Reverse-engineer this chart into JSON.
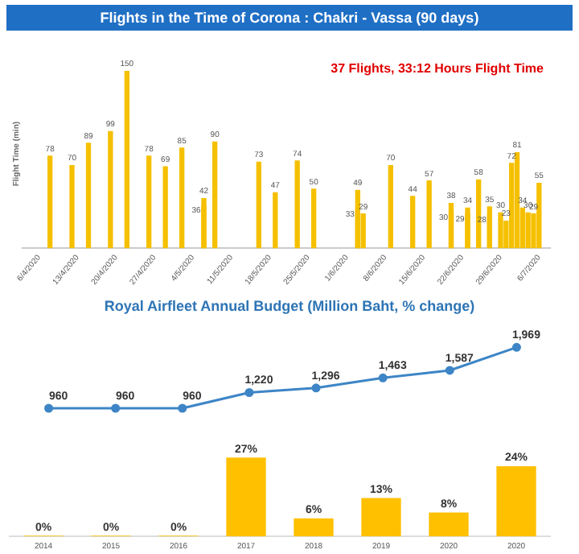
{
  "chart_data": [
    {
      "type": "bar",
      "title": "Flights in the Time of Corona : Chakri - Vassa (90 days)",
      "ylabel": "Flight Time (min)",
      "annotations": [
        "37 Flights, 33:12 Hours Flight Time"
      ],
      "color": "#f5c000",
      "series": [
        {
          "x": [
            "2020-04-08",
            "2020-04-12",
            "2020-04-15",
            "2020-04-19",
            "2020-04-22",
            "2020-04-26",
            "2020-04-29",
            "2020-05-02",
            "2020-05-06",
            "2020-05-08",
            "2020-05-16",
            "2020-05-19",
            "2020-05-23",
            "2020-05-26",
            "2020-06-03",
            "2020-06-04",
            "2020-06-09",
            "2020-06-13",
            "2020-06-16",
            "2020-06-20",
            "2020-06-23",
            "2020-06-25",
            "2020-06-27",
            "2020-06-29",
            "2020-06-30",
            "2020-07-01",
            "2020-07-02",
            "2020-07-03",
            "2020-07-04",
            "2020-07-05",
            "2020-07-06"
          ],
          "values": [
            78,
            70,
            89,
            99,
            150,
            78,
            69,
            85,
            42,
            90,
            73,
            47,
            74,
            50,
            49,
            29,
            70,
            44,
            57,
            38,
            34,
            58,
            35,
            30,
            23,
            72,
            81,
            34,
            30,
            29,
            55
          ]
        },
        {
          "x": [
            "2020-05-06",
            "2020-06-03",
            "2020-06-20",
            "2020-06-23",
            "2020-06-27"
          ],
          "values": [
            36,
            33,
            30,
            29,
            28
          ]
        }
      ],
      "xlim": [
        "2020-04-03",
        "2020-07-08"
      ],
      "xticks": [
        {
          "value": "2020-04-06",
          "label": "6/4/2020"
        },
        {
          "value": "2020-04-13",
          "label": "13/4/2020"
        },
        {
          "value": "2020-04-20",
          "label": "20/4/2020"
        },
        {
          "value": "2020-04-27",
          "label": "27/4/2020"
        },
        {
          "value": "2020-05-04",
          "label": "4/5/2020"
        },
        {
          "value": "2020-05-11",
          "label": "11/5/2020"
        },
        {
          "value": "2020-05-18",
          "label": "18/5/2020"
        },
        {
          "value": "2020-05-25",
          "label": "25/5/2020"
        },
        {
          "value": "2020-06-01",
          "label": "1/6/2020"
        },
        {
          "value": "2020-06-08",
          "label": "8/6/2020"
        },
        {
          "value": "2020-06-15",
          "label": "15/6/2020"
        },
        {
          "value": "2020-06-22",
          "label": "22/6/2020"
        },
        {
          "value": "2020-06-29",
          "label": "29/6/2020"
        },
        {
          "value": "2020-07-06",
          "label": "6/7/2020"
        }
      ],
      "tick_labels": "x",
      "data_labels": true
    },
    {
      "type": "line",
      "title": "Royal Airfleet Annual Budget (Million Baht, % change)",
      "categories": [
        null,
        null,
        null,
        null,
        null,
        null,
        null,
        null
      ],
      "series": [
        {
          "color": "#3d85c6",
          "values": [
            960,
            960,
            960,
            1220,
            1296,
            1463,
            1587,
            1969
          ],
          "value_labels": [
            "960",
            "960",
            "960",
            "1,220",
            "1,296",
            "1,463",
            "1,587",
            "1,969"
          ]
        }
      ],
      "marker": "circle",
      "tick_labels": false
    },
    {
      "type": "bar",
      "categories": [
        "2014",
        "2015",
        "2016",
        "2017",
        "2018",
        "2019",
        "2020",
        "2020"
      ],
      "series": [
        {
          "color": "#ffc000",
          "values": [
            0,
            0,
            0,
            27,
            6,
            13,
            8,
            24
          ],
          "value_labels": [
            "0%",
            "0%",
            "0%",
            "27%",
            "6%",
            "13%",
            "8%",
            "24%"
          ]
        }
      ],
      "tick_labels": "x"
    }
  ]
}
